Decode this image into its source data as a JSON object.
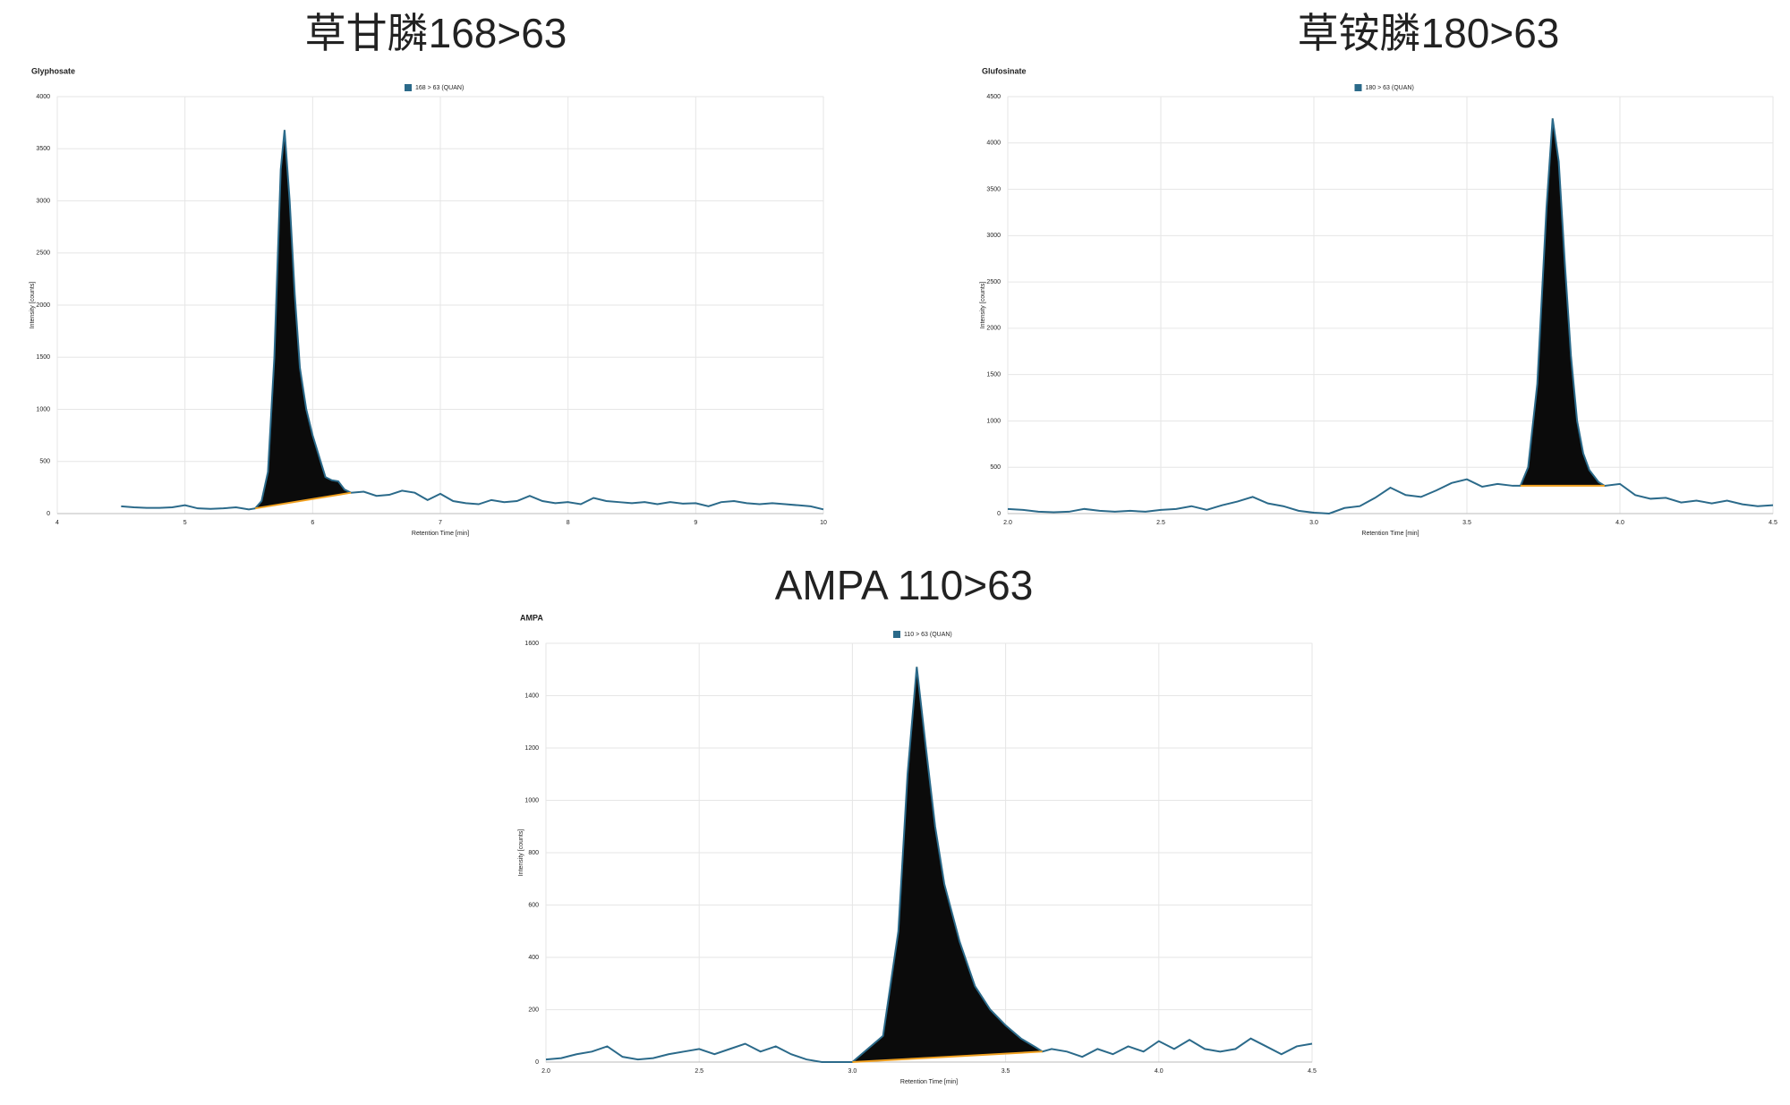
{
  "chart_data": [
    {
      "type": "line",
      "title": "草甘膦168>63",
      "subtitle": "Glyphosate",
      "x_label": "Retention Time [min]",
      "y_label": "Intensity [counts]",
      "x": [
        4.5,
        4.6,
        4.7,
        4.8,
        4.9,
        5.0,
        5.1,
        5.2,
        5.3,
        5.4,
        5.5,
        5.55,
        5.6,
        5.65,
        5.7,
        5.75,
        5.78,
        5.82,
        5.86,
        5.9,
        5.95,
        6.0,
        6.05,
        6.1,
        6.15,
        6.2,
        6.25,
        6.3,
        6.4,
        6.5,
        6.6,
        6.7,
        6.8,
        6.9,
        7.0,
        7.1,
        7.2,
        7.3,
        7.4,
        7.5,
        7.6,
        7.7,
        7.8,
        7.9,
        8.0,
        8.1,
        8.2,
        8.3,
        8.4,
        8.5,
        8.6,
        8.7,
        8.8,
        8.9,
        9.0,
        9.1,
        9.2,
        9.3,
        9.4,
        9.5,
        9.6,
        9.7,
        9.8,
        9.9,
        10.0
      ],
      "series": [
        {
          "name": "168 > 63 (QUAN)",
          "color": "#2b6a8a",
          "values": [
            70,
            60,
            55,
            55,
            60,
            80,
            50,
            45,
            50,
            60,
            40,
            50,
            120,
            400,
            1500,
            3300,
            3680,
            3000,
            2100,
            1400,
            1000,
            750,
            550,
            350,
            320,
            310,
            230,
            200,
            210,
            170,
            180,
            220,
            200,
            130,
            190,
            120,
            100,
            90,
            130,
            110,
            120,
            170,
            120,
            100,
            110,
            90,
            150,
            120,
            110,
            100,
            110,
            90,
            110,
            95,
            100,
            70,
            110,
            120,
            100,
            90,
            100,
            90,
            80,
            70,
            40
          ]
        }
      ],
      "integration": {
        "x": [
          5.55,
          6.3
        ],
        "baseline": [
          50,
          200
        ],
        "color": "#f0a020"
      },
      "xlim": [
        4,
        10
      ],
      "ylim": [
        0,
        4000
      ],
      "xticks": [
        4,
        5,
        6,
        7,
        8,
        9,
        10
      ],
      "yticks": [
        0,
        500,
        1000,
        1500,
        2000,
        2500,
        3000,
        3500,
        4000
      ],
      "grid": true
    },
    {
      "type": "line",
      "title": "草铵膦180>63",
      "subtitle": "Glufosinate",
      "x_label": "Retention Time [min]",
      "y_label": "Intensity [counts]",
      "x": [
        2.0,
        2.05,
        2.1,
        2.15,
        2.2,
        2.25,
        2.3,
        2.35,
        2.4,
        2.45,
        2.5,
        2.55,
        2.6,
        2.65,
        2.7,
        2.75,
        2.8,
        2.85,
        2.9,
        2.95,
        3.0,
        3.05,
        3.1,
        3.15,
        3.2,
        3.25,
        3.3,
        3.35,
        3.4,
        3.45,
        3.5,
        3.55,
        3.6,
        3.65,
        3.675,
        3.7,
        3.73,
        3.76,
        3.78,
        3.8,
        3.82,
        3.84,
        3.86,
        3.88,
        3.9,
        3.93,
        3.95,
        4.0,
        4.05,
        4.1,
        4.15,
        4.2,
        4.25,
        4.3,
        4.35,
        4.4,
        4.45,
        4.5
      ],
      "series": [
        {
          "name": "180 > 63 (QUAN)",
          "color": "#2b6a8a",
          "values": [
            50,
            40,
            20,
            15,
            20,
            50,
            30,
            20,
            30,
            20,
            40,
            50,
            80,
            40,
            90,
            130,
            180,
            110,
            80,
            30,
            10,
            0,
            60,
            80,
            170,
            280,
            200,
            180,
            250,
            330,
            370,
            290,
            320,
            300,
            300,
            500,
            1400,
            3300,
            4265,
            3800,
            2700,
            1700,
            1000,
            650,
            470,
            340,
            300,
            320,
            200,
            160,
            170,
            120,
            140,
            110,
            140,
            100,
            80,
            90
          ]
        }
      ],
      "integration": {
        "x": [
          3.675,
          3.95
        ],
        "baseline": [
          300,
          300
        ],
        "color": "#f0a020"
      },
      "xlim": [
        2,
        4.5
      ],
      "ylim": [
        0,
        4500
      ],
      "xticks": [
        {
          "value": 2,
          "label": "2.0"
        },
        2.5,
        {
          "value": 3,
          "label": "3.0"
        },
        3.5,
        {
          "value": 4,
          "label": "4.0"
        },
        4.5
      ],
      "yticks": [
        0,
        500,
        1000,
        1500,
        2000,
        2500,
        3000,
        3500,
        4000,
        4500
      ],
      "grid": true
    },
    {
      "type": "line",
      "title": "AMPA 110>63",
      "subtitle": "AMPA",
      "x_label": "Retention Time [min]",
      "y_label": "Intensity [counts]",
      "x": [
        2.0,
        2.05,
        2.1,
        2.15,
        2.2,
        2.25,
        2.3,
        2.35,
        2.4,
        2.45,
        2.5,
        2.55,
        2.6,
        2.65,
        2.7,
        2.75,
        2.8,
        2.85,
        2.9,
        2.95,
        3.0,
        3.05,
        3.1,
        3.15,
        3.18,
        3.21,
        3.24,
        3.27,
        3.3,
        3.35,
        3.4,
        3.45,
        3.5,
        3.55,
        3.6,
        3.62,
        3.65,
        3.7,
        3.75,
        3.8,
        3.85,
        3.9,
        3.95,
        4.0,
        4.05,
        4.1,
        4.15,
        4.2,
        4.25,
        4.3,
        4.35,
        4.4,
        4.45,
        4.5
      ],
      "series": [
        {
          "name": "110 > 63 (QUAN)",
          "color": "#2b6a8a",
          "values": [
            10,
            15,
            30,
            40,
            60,
            20,
            10,
            15,
            30,
            40,
            50,
            30,
            50,
            70,
            40,
            60,
            30,
            10,
            0,
            0,
            0,
            50,
            100,
            500,
            1100,
            1510,
            1200,
            900,
            680,
            460,
            290,
            200,
            140,
            90,
            55,
            40,
            50,
            40,
            20,
            50,
            30,
            60,
            40,
            80,
            50,
            85,
            50,
            40,
            50,
            90,
            60,
            30,
            60,
            70
          ]
        }
      ],
      "integration": {
        "x": [
          3.0,
          3.62
        ],
        "baseline": [
          0,
          40
        ],
        "color": "#f0a020"
      },
      "xlim": [
        2,
        4.5
      ],
      "ylim": [
        0,
        1600
      ],
      "xticks": [
        {
          "value": 2,
          "label": "2.0"
        },
        2.5,
        {
          "value": 3,
          "label": "3.0"
        },
        3.5,
        {
          "value": 4,
          "label": "4.0"
        },
        4.5
      ],
      "yticks": [
        0,
        200,
        400,
        600,
        800,
        1000,
        1200,
        1400,
        1600
      ],
      "grid": true
    }
  ]
}
